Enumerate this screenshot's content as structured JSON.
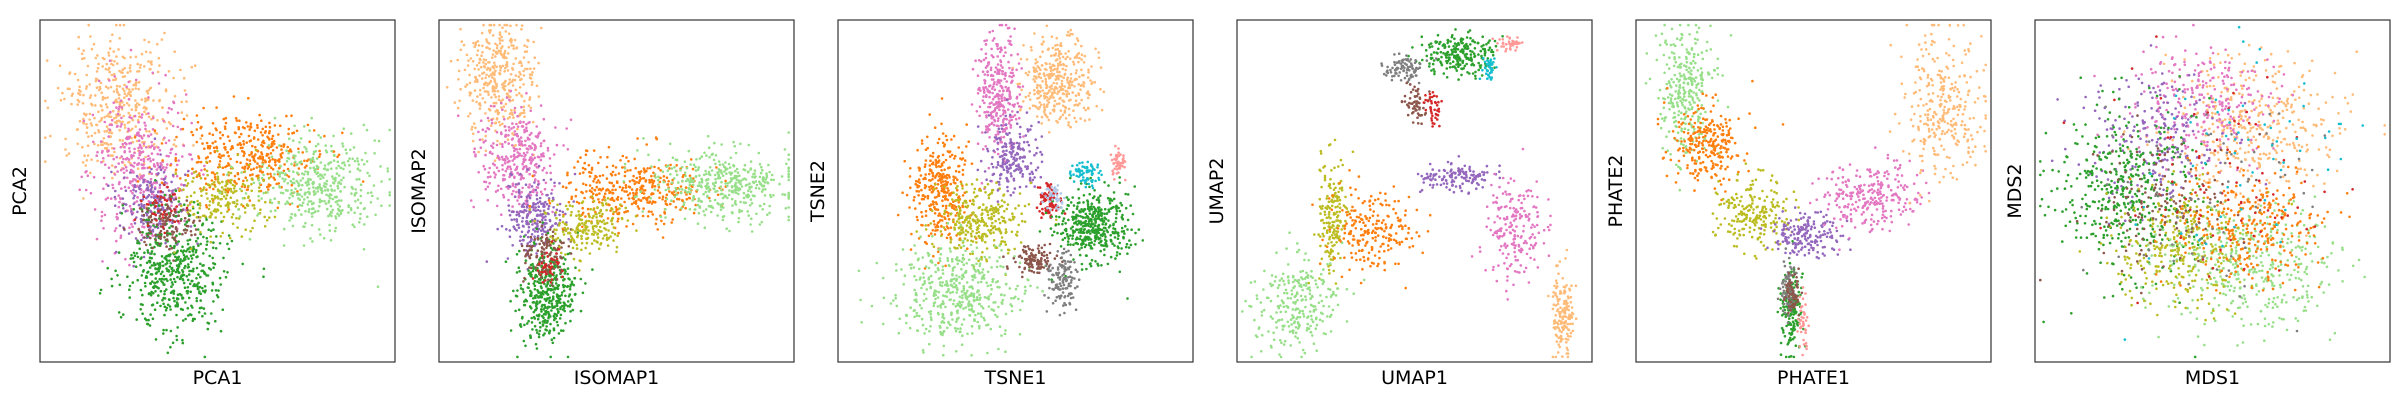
{
  "chart_data": [
    {
      "type": "scatter",
      "title": "",
      "xlabel": "PCA1",
      "ylabel": "PCA2",
      "xticks": false,
      "yticks": false,
      "grid": false,
      "legend": "none",
      "clusters": [
        {
          "color": "#ffbb78",
          "cx": 0.22,
          "cy": 0.25,
          "sx": 0.08,
          "sy": 0.1,
          "n": 420
        },
        {
          "color": "#e377c2",
          "cx": 0.28,
          "cy": 0.42,
          "sx": 0.07,
          "sy": 0.1,
          "n": 380
        },
        {
          "color": "#9467bd",
          "cx": 0.32,
          "cy": 0.55,
          "sx": 0.05,
          "sy": 0.06,
          "n": 200
        },
        {
          "color": "#2ca02c",
          "cx": 0.38,
          "cy": 0.72,
          "sx": 0.07,
          "sy": 0.09,
          "n": 520
        },
        {
          "color": "#8c564b",
          "cx": 0.36,
          "cy": 0.6,
          "sx": 0.04,
          "sy": 0.04,
          "n": 120
        },
        {
          "color": "#ff7f0e",
          "cx": 0.58,
          "cy": 0.4,
          "sx": 0.1,
          "sy": 0.06,
          "n": 380
        },
        {
          "color": "#bcbd22",
          "cx": 0.52,
          "cy": 0.52,
          "sx": 0.06,
          "sy": 0.05,
          "n": 200
        },
        {
          "color": "#98df8a",
          "cx": 0.78,
          "cy": 0.48,
          "sx": 0.09,
          "sy": 0.07,
          "n": 420
        },
        {
          "color": "#d62728",
          "cx": 0.34,
          "cy": 0.55,
          "sx": 0.03,
          "sy": 0.03,
          "n": 40
        }
      ]
    },
    {
      "type": "scatter",
      "title": "",
      "xlabel": "ISOMAP1",
      "ylabel": "ISOMAP2",
      "xticks": false,
      "yticks": false,
      "grid": false,
      "legend": "none",
      "clusters": [
        {
          "color": "#ffbb78",
          "cx": 0.17,
          "cy": 0.18,
          "sx": 0.05,
          "sy": 0.09,
          "n": 380
        },
        {
          "color": "#e377c2",
          "cx": 0.22,
          "cy": 0.4,
          "sx": 0.05,
          "sy": 0.08,
          "n": 340
        },
        {
          "color": "#9467bd",
          "cx": 0.27,
          "cy": 0.58,
          "sx": 0.04,
          "sy": 0.06,
          "n": 220
        },
        {
          "color": "#2ca02c",
          "cx": 0.3,
          "cy": 0.8,
          "sx": 0.04,
          "sy": 0.07,
          "n": 420
        },
        {
          "color": "#8c564b",
          "cx": 0.3,
          "cy": 0.68,
          "sx": 0.03,
          "sy": 0.04,
          "n": 120
        },
        {
          "color": "#ff7f0e",
          "cx": 0.55,
          "cy": 0.5,
          "sx": 0.1,
          "sy": 0.05,
          "n": 380
        },
        {
          "color": "#bcbd22",
          "cx": 0.42,
          "cy": 0.6,
          "sx": 0.06,
          "sy": 0.04,
          "n": 200
        },
        {
          "color": "#98df8a",
          "cx": 0.8,
          "cy": 0.48,
          "sx": 0.1,
          "sy": 0.05,
          "n": 420
        },
        {
          "color": "#d62728",
          "cx": 0.31,
          "cy": 0.72,
          "sx": 0.02,
          "sy": 0.03,
          "n": 40
        }
      ]
    },
    {
      "type": "scatter",
      "title": "",
      "xlabel": "TSNE1",
      "ylabel": "TSNE2",
      "xticks": false,
      "yticks": false,
      "grid": false,
      "legend": "none",
      "clusters": [
        {
          "color": "#ffbb78",
          "cx": 0.62,
          "cy": 0.18,
          "sx": 0.05,
          "sy": 0.06,
          "n": 360
        },
        {
          "color": "#e377c2",
          "cx": 0.45,
          "cy": 0.22,
          "sx": 0.03,
          "sy": 0.09,
          "n": 320
        },
        {
          "color": "#9467bd",
          "cx": 0.49,
          "cy": 0.4,
          "sx": 0.04,
          "sy": 0.05,
          "n": 200
        },
        {
          "color": "#ff7f0e",
          "cx": 0.29,
          "cy": 0.5,
          "sx": 0.04,
          "sy": 0.08,
          "n": 340
        },
        {
          "color": "#bcbd22",
          "cx": 0.4,
          "cy": 0.58,
          "sx": 0.06,
          "sy": 0.05,
          "n": 300
        },
        {
          "color": "#98df8a",
          "cx": 0.34,
          "cy": 0.8,
          "sx": 0.09,
          "sy": 0.07,
          "n": 460
        },
        {
          "color": "#d62728",
          "cx": 0.59,
          "cy": 0.53,
          "sx": 0.015,
          "sy": 0.03,
          "n": 90
        },
        {
          "color": "#2ca02c",
          "cx": 0.72,
          "cy": 0.6,
          "sx": 0.05,
          "sy": 0.05,
          "n": 440
        },
        {
          "color": "#8c564b",
          "cx": 0.55,
          "cy": 0.7,
          "sx": 0.03,
          "sy": 0.02,
          "n": 120
        },
        {
          "color": "#7f7f7f",
          "cx": 0.63,
          "cy": 0.76,
          "sx": 0.02,
          "sy": 0.04,
          "n": 120
        },
        {
          "color": "#17becf",
          "cx": 0.7,
          "cy": 0.45,
          "sx": 0.02,
          "sy": 0.02,
          "n": 70
        },
        {
          "color": "#ff9896",
          "cx": 0.79,
          "cy": 0.42,
          "sx": 0.01,
          "sy": 0.02,
          "n": 50
        },
        {
          "color": "#aec7e8",
          "cx": 0.61,
          "cy": 0.52,
          "sx": 0.015,
          "sy": 0.02,
          "n": 40
        }
      ]
    },
    {
      "type": "scatter",
      "title": "",
      "xlabel": "UMAP1",
      "ylabel": "UMAP2",
      "xticks": false,
      "yticks": false,
      "grid": false,
      "legend": "none",
      "clusters": [
        {
          "color": "#2ca02c",
          "cx": 0.63,
          "cy": 0.1,
          "sx": 0.05,
          "sy": 0.03,
          "n": 240
        },
        {
          "color": "#7f7f7f",
          "cx": 0.47,
          "cy": 0.14,
          "sx": 0.03,
          "sy": 0.02,
          "n": 90
        },
        {
          "color": "#8c564b",
          "cx": 0.5,
          "cy": 0.24,
          "sx": 0.015,
          "sy": 0.03,
          "n": 60
        },
        {
          "color": "#d62728",
          "cx": 0.55,
          "cy": 0.25,
          "sx": 0.01,
          "sy": 0.03,
          "n": 40
        },
        {
          "color": "#17becf",
          "cx": 0.71,
          "cy": 0.14,
          "sx": 0.01,
          "sy": 0.02,
          "n": 40
        },
        {
          "color": "#ff9896",
          "cx": 0.77,
          "cy": 0.07,
          "sx": 0.015,
          "sy": 0.01,
          "n": 40
        },
        {
          "color": "#bcbd22",
          "cx": 0.27,
          "cy": 0.58,
          "sx": 0.02,
          "sy": 0.09,
          "n": 180
        },
        {
          "color": "#ff7f0e",
          "cx": 0.38,
          "cy": 0.62,
          "sx": 0.06,
          "sy": 0.06,
          "n": 220
        },
        {
          "color": "#98df8a",
          "cx": 0.16,
          "cy": 0.83,
          "sx": 0.06,
          "sy": 0.07,
          "n": 260
        },
        {
          "color": "#9467bd",
          "cx": 0.62,
          "cy": 0.46,
          "sx": 0.05,
          "sy": 0.02,
          "n": 140
        },
        {
          "color": "#e377c2",
          "cx": 0.78,
          "cy": 0.62,
          "sx": 0.04,
          "sy": 0.08,
          "n": 200
        },
        {
          "color": "#ffbb78",
          "cx": 0.92,
          "cy": 0.86,
          "sx": 0.015,
          "sy": 0.06,
          "n": 160
        }
      ]
    },
    {
      "type": "scatter",
      "title": "",
      "xlabel": "PHATE1",
      "ylabel": "PHATE2",
      "xticks": false,
      "yticks": false,
      "grid": false,
      "legend": "none",
      "clusters": [
        {
          "color": "#98df8a",
          "cx": 0.14,
          "cy": 0.2,
          "sx": 0.04,
          "sy": 0.09,
          "n": 300
        },
        {
          "color": "#ff7f0e",
          "cx": 0.2,
          "cy": 0.36,
          "sx": 0.05,
          "sy": 0.06,
          "n": 260
        },
        {
          "color": "#bcbd22",
          "cx": 0.33,
          "cy": 0.56,
          "sx": 0.05,
          "sy": 0.05,
          "n": 220
        },
        {
          "color": "#9467bd",
          "cx": 0.48,
          "cy": 0.63,
          "sx": 0.05,
          "sy": 0.03,
          "n": 180
        },
        {
          "color": "#e377c2",
          "cx": 0.66,
          "cy": 0.52,
          "sx": 0.07,
          "sy": 0.05,
          "n": 260
        },
        {
          "color": "#ffbb78",
          "cx": 0.86,
          "cy": 0.25,
          "sx": 0.06,
          "sy": 0.1,
          "n": 300
        },
        {
          "color": "#2ca02c",
          "cx": 0.44,
          "cy": 0.85,
          "sx": 0.015,
          "sy": 0.06,
          "n": 180
        },
        {
          "color": "#7f7f7f",
          "cx": 0.43,
          "cy": 0.78,
          "sx": 0.01,
          "sy": 0.04,
          "n": 90
        },
        {
          "color": "#8c564b",
          "cx": 0.44,
          "cy": 0.8,
          "sx": 0.01,
          "sy": 0.03,
          "n": 60
        },
        {
          "color": "#ff9896",
          "cx": 0.47,
          "cy": 0.88,
          "sx": 0.008,
          "sy": 0.04,
          "n": 40
        }
      ]
    },
    {
      "type": "scatter",
      "title": "",
      "xlabel": "MDS1",
      "ylabel": "MDS2",
      "xticks": false,
      "yticks": false,
      "grid": false,
      "legend": "none",
      "clusters": [
        {
          "color": "#ffbb78",
          "cx": 0.62,
          "cy": 0.3,
          "sx": 0.12,
          "sy": 0.1,
          "n": 380
        },
        {
          "color": "#e377c2",
          "cx": 0.48,
          "cy": 0.24,
          "sx": 0.1,
          "sy": 0.08,
          "n": 260
        },
        {
          "color": "#9467bd",
          "cx": 0.32,
          "cy": 0.36,
          "sx": 0.1,
          "sy": 0.1,
          "n": 220
        },
        {
          "color": "#2ca02c",
          "cx": 0.26,
          "cy": 0.5,
          "sx": 0.1,
          "sy": 0.12,
          "n": 440
        },
        {
          "color": "#98df8a",
          "cx": 0.6,
          "cy": 0.72,
          "sx": 0.12,
          "sy": 0.09,
          "n": 420
        },
        {
          "color": "#bcbd22",
          "cx": 0.42,
          "cy": 0.66,
          "sx": 0.1,
          "sy": 0.09,
          "n": 300
        },
        {
          "color": "#ff7f0e",
          "cx": 0.6,
          "cy": 0.6,
          "sx": 0.1,
          "sy": 0.09,
          "n": 300
        },
        {
          "color": "#8c564b",
          "cx": 0.35,
          "cy": 0.55,
          "sx": 0.1,
          "sy": 0.1,
          "n": 120
        },
        {
          "color": "#d62728",
          "cx": 0.5,
          "cy": 0.5,
          "sx": 0.15,
          "sy": 0.15,
          "n": 80
        },
        {
          "color": "#7f7f7f",
          "cx": 0.5,
          "cy": 0.5,
          "sx": 0.15,
          "sy": 0.15,
          "n": 80
        },
        {
          "color": "#17becf",
          "cx": 0.55,
          "cy": 0.4,
          "sx": 0.15,
          "sy": 0.15,
          "n": 60
        }
      ]
    }
  ]
}
